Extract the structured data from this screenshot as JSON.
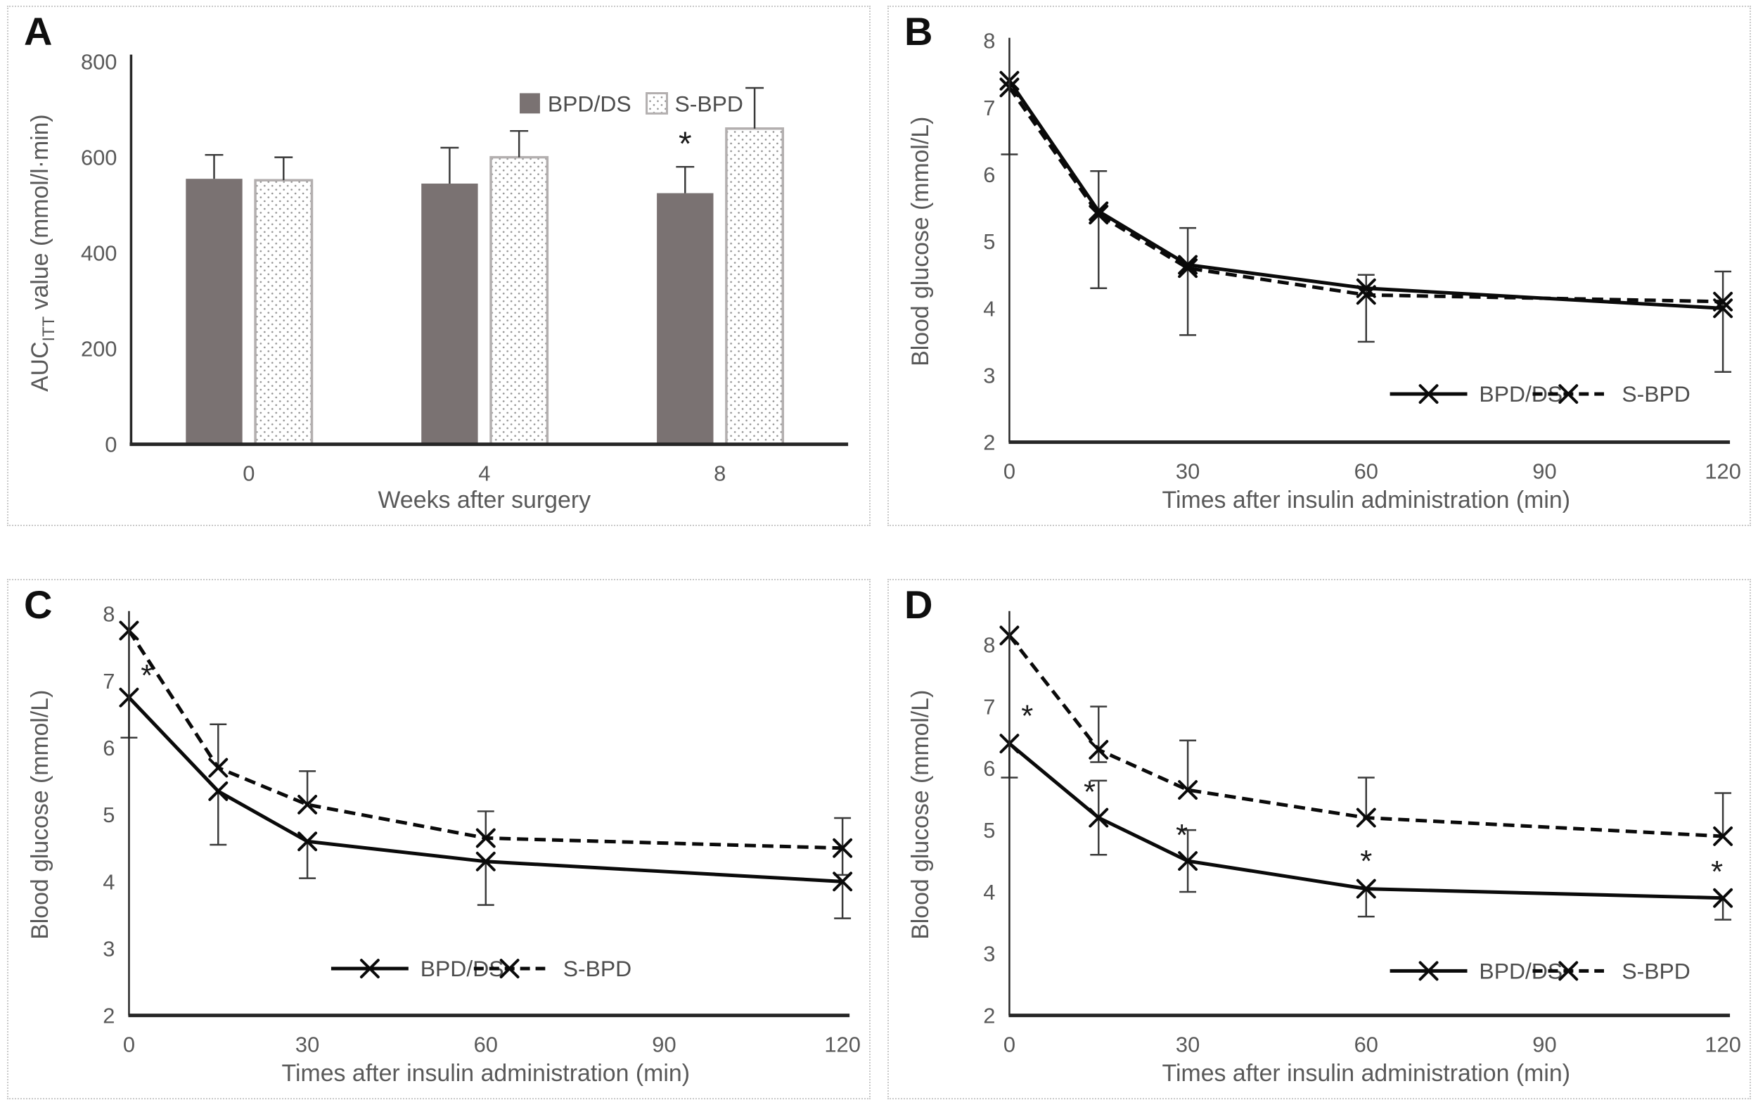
{
  "colors": {
    "text": "#595959",
    "axis": "#262626",
    "series_line": "#0a0a0a",
    "bar_fill": "#7a7272",
    "dotted_bar_stroke": "#b3afaf",
    "dot_color": "#8f8f8f",
    "error_bar": "#3a3a3a",
    "panel_border": "#c9c9c9",
    "annotation": "#1a1a1a"
  },
  "panels": [
    {
      "label": "A",
      "chart_data": {
        "type": "bar",
        "categories": [
          "0",
          "4",
          "8"
        ],
        "xlabel": "Weeks after surgery",
        "ylabel_parts": [
          {
            "t": "AUC"
          },
          {
            "t": "ITT",
            "sub": true
          },
          {
            "t": " value (mmol/l·min)"
          }
        ],
        "ylim": [
          0,
          800
        ],
        "yticks": [
          0,
          200,
          400,
          600,
          800
        ],
        "series": [
          {
            "name": "BPD/DS",
            "fill": "solid",
            "values": [
              555,
              545,
              525
            ],
            "err_up": [
              50,
              75,
              55
            ]
          },
          {
            "name": "S-BPD",
            "fill": "dots",
            "values": [
              552,
              600,
              660
            ],
            "err_up": [
              48,
              55,
              85
            ]
          }
        ],
        "annotations": [
          {
            "text": "*",
            "cat": 2,
            "series": 0,
            "y": 628
          }
        ],
        "legend": {
          "x": 0.55,
          "y": 712
        }
      }
    },
    {
      "label": "B",
      "chart_data": {
        "type": "line",
        "x": [
          0,
          15,
          30,
          60,
          120
        ],
        "xticks": [
          0,
          30,
          60,
          90,
          120
        ],
        "xlabel": "Times after insulin administration (min)",
        "ylabel": "Blood glucose (mmol/L)",
        "ylim": [
          2,
          8
        ],
        "yticks": [
          2,
          3,
          4,
          5,
          6,
          7,
          8
        ],
        "series": [
          {
            "name": "BPD/DS",
            "dash": "solid",
            "values": [
              7.4,
              5.45,
              4.65,
              4.3,
              4.0
            ],
            "err_lo": [
              6.3,
              4.3,
              3.6,
              3.5,
              3.05
            ],
            "err_hi": [
              null,
              6.05,
              5.2,
              4.5,
              4.55
            ]
          },
          {
            "name": "S-BPD",
            "dash": "dashed",
            "values": [
              7.3,
              5.4,
              4.6,
              4.2,
              4.1
            ],
            "err_lo": [
              null,
              null,
              null,
              null,
              null
            ],
            "err_hi": [
              null,
              null,
              null,
              null,
              null
            ]
          }
        ],
        "annotations": [],
        "legend": {
          "y": 2.72,
          "items": [
            {
              "series": 0,
              "x1": 64,
              "x2": 77,
              "tx": 79
            },
            {
              "series": 1,
              "x1": 88,
              "x2": 100,
              "tx": 103
            }
          ]
        }
      }
    },
    {
      "label": "C",
      "chart_data": {
        "type": "line",
        "x": [
          0,
          15,
          30,
          60,
          120
        ],
        "xticks": [
          0,
          30,
          60,
          90,
          120
        ],
        "xlabel": "Times after insulin administration (min)",
        "ylabel": "Blood glucose (mmol/L)",
        "ylim": [
          2,
          8
        ],
        "yticks": [
          2,
          3,
          4,
          5,
          6,
          7,
          8
        ],
        "series": [
          {
            "name": "BPD/DS",
            "dash": "solid",
            "values": [
              6.75,
              5.35,
              4.6,
              4.3,
              4.0
            ],
            "err_lo": [
              6.15,
              4.55,
              4.05,
              3.65,
              3.45
            ],
            "err_hi": [
              null,
              null,
              null,
              null,
              null
            ]
          },
          {
            "name": "S-BPD",
            "dash": "dashed",
            "values": [
              7.75,
              5.7,
              5.15,
              4.65,
              4.5
            ],
            "err_lo": [
              null,
              null,
              null,
              null,
              4.1
            ],
            "err_hi": [
              null,
              6.35,
              5.65,
              5.05,
              4.95
            ]
          }
        ],
        "annotations": [
          {
            "text": "*",
            "x": 3,
            "y": 7.08
          }
        ],
        "legend": {
          "y": 2.7,
          "items": [
            {
              "series": 0,
              "x1": 34,
              "x2": 47,
              "tx": 49
            },
            {
              "series": 1,
              "x1": 58,
              "x2": 70,
              "tx": 73
            }
          ]
        }
      }
    },
    {
      "label": "D",
      "chart_data": {
        "type": "line",
        "x": [
          0,
          15,
          30,
          60,
          120
        ],
        "xticks": [
          0,
          30,
          60,
          90,
          120
        ],
        "xlabel": "Times after insulin administration (min)",
        "ylabel": "Blood glucose (mmol/L)",
        "ylim": [
          2,
          8.5
        ],
        "yticks": [
          2,
          3,
          4,
          5,
          6,
          7,
          8
        ],
        "series": [
          {
            "name": "BPD/DS",
            "dash": "solid",
            "values": [
              6.4,
              5.2,
              4.5,
              4.05,
              3.9
            ],
            "err_lo": [
              5.85,
              4.6,
              4.0,
              3.6,
              3.55
            ],
            "err_hi": [
              null,
              5.8,
              5.0,
              null,
              null
            ]
          },
          {
            "name": "S-BPD",
            "dash": "dashed",
            "values": [
              8.15,
              6.3,
              5.65,
              5.2,
              4.9
            ],
            "err_lo": [
              null,
              6.1,
              null,
              null,
              null
            ],
            "err_hi": [
              null,
              7.0,
              6.45,
              5.85,
              5.6
            ]
          }
        ],
        "annotations": [
          {
            "text": "*",
            "x": 3,
            "y": 6.85
          },
          {
            "text": "*",
            "x": 13.5,
            "y": 5.62
          },
          {
            "text": "*",
            "x": 29,
            "y": 4.92
          },
          {
            "text": "*",
            "x": 60,
            "y": 4.5
          },
          {
            "text": "*",
            "x": 119,
            "y": 4.33
          }
        ],
        "legend": {
          "y": 2.72,
          "items": [
            {
              "series": 0,
              "x1": 64,
              "x2": 77,
              "tx": 79
            },
            {
              "series": 1,
              "x1": 88,
              "x2": 100,
              "tx": 103
            }
          ]
        }
      }
    }
  ]
}
